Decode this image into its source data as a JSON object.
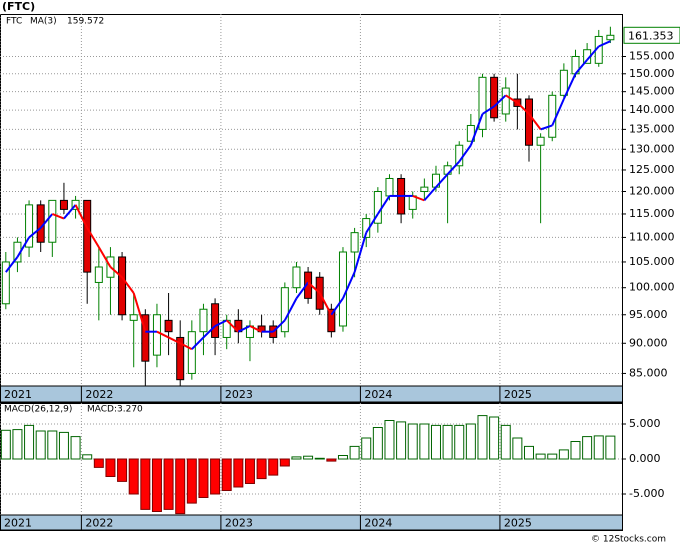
{
  "footer": "© 12Stocks.com",
  "chart_data": [
    {
      "type": "candlestick",
      "title": "(FTC)",
      "name": "FTC",
      "log_scale": true,
      "grid": true,
      "up_color": "#008000",
      "down_color": "#e00000",
      "open": [
        97,
        105,
        108,
        117,
        109,
        118,
        116,
        118,
        101,
        102,
        106,
        94,
        95,
        88,
        94,
        91,
        85,
        92,
        97,
        91,
        94,
        91,
        93,
        93,
        92,
        100,
        103,
        102,
        96,
        93,
        107,
        110,
        113,
        119,
        123,
        116,
        120,
        121,
        124,
        126,
        132,
        135,
        149,
        139,
        143,
        143,
        131,
        133,
        144,
        150,
        153,
        153,
        160
      ],
      "high": [
        107,
        110,
        118,
        118,
        118,
        122,
        119,
        118,
        108,
        108,
        107,
        99,
        96,
        97,
        99,
        94,
        94,
        97,
        98,
        95,
        96,
        94,
        95,
        94,
        101,
        105,
        104,
        103,
        97,
        108,
        112,
        115,
        121,
        124,
        124,
        120,
        123,
        126,
        127,
        132,
        139,
        150,
        150,
        149,
        150,
        144,
        134,
        145,
        153,
        157,
        159,
        163,
        164
      ],
      "low": [
        96,
        103,
        106,
        107,
        106,
        115,
        114,
        97,
        94,
        95,
        94,
        86,
        83,
        86,
        88,
        83,
        84,
        88,
        88,
        89,
        90,
        87,
        91,
        90,
        91,
        99,
        97,
        95,
        91,
        92,
        102,
        108,
        111,
        118,
        113,
        114,
        118,
        120,
        113,
        124,
        132,
        133,
        137,
        137,
        135,
        127,
        113,
        132,
        143,
        149,
        153,
        152,
        159
      ],
      "close": [
        105,
        109,
        117,
        109,
        118,
        116,
        118,
        103,
        104,
        106,
        95,
        95,
        87,
        95,
        92,
        84,
        92,
        96,
        91,
        94,
        92,
        93,
        92,
        91,
        100,
        104,
        98,
        96,
        92,
        107,
        111,
        114,
        120,
        123,
        115,
        119,
        121,
        124,
        126,
        131,
        136,
        149,
        138,
        146,
        141,
        131,
        133,
        144,
        151,
        155,
        157,
        161,
        161.353
      ],
      "ma": {
        "name": "MA(3)",
        "up_color": "#0000ff",
        "down_color": "#ff0000",
        "values": [
          103,
          106,
          110,
          112,
          115,
          114,
          117,
          112,
          108,
          104,
          102,
          99,
          92,
          92,
          91,
          90,
          89,
          91,
          93,
          94,
          92,
          93,
          92,
          92,
          94,
          98,
          101,
          99,
          95,
          98,
          103,
          111,
          115,
          119,
          119,
          119,
          118,
          121,
          124,
          127,
          131,
          139,
          141,
          144,
          142,
          139,
          135,
          136,
          143,
          150,
          154,
          158,
          159.572
        ]
      },
      "xlim": [
        -0.5,
        53
      ],
      "xticks": [
        {
          "value": -0.5,
          "label": "2021"
        },
        {
          "value": 6.5,
          "label": "2022"
        },
        {
          "value": 18.5,
          "label": "2023"
        },
        {
          "value": 30.5,
          "label": "2024"
        },
        {
          "value": 42.5,
          "label": "2025"
        }
      ],
      "ylim": [
        83,
        168
      ],
      "yticks": [
        {
          "value": 85,
          "label": "85.000"
        },
        {
          "value": 90,
          "label": "90.000"
        },
        {
          "value": 95,
          "label": "95.000"
        },
        {
          "value": 100,
          "label": "100.000"
        },
        {
          "value": 105,
          "label": "105.000"
        },
        {
          "value": 110,
          "label": "110.000"
        },
        {
          "value": 115,
          "label": "115.000"
        },
        {
          "value": 120,
          "label": "120.000"
        },
        {
          "value": 125,
          "label": "125.000"
        },
        {
          "value": 130,
          "label": "130.000"
        },
        {
          "value": 135,
          "label": "135.000"
        },
        {
          "value": 140,
          "label": "140.000"
        },
        {
          "value": 145,
          "label": "145.000"
        },
        {
          "value": 150,
          "label": "150.000"
        },
        {
          "value": 155,
          "label": "155.000"
        }
      ]
    },
    {
      "type": "histogram-bar",
      "name": "MACD(26,12,9)",
      "current_label": "MACD:3.270",
      "grid": true,
      "up_color": "#006400",
      "down_color": "#ff0000",
      "values": [
        4.1,
        4.2,
        4.8,
        4.0,
        4.0,
        3.8,
        3.2,
        0.6,
        -1.2,
        -2.5,
        -3.2,
        -5.0,
        -7.2,
        -7.5,
        -7.2,
        -7.8,
        -6.3,
        -5.5,
        -5.0,
        -4.5,
        -4.0,
        -3.5,
        -2.8,
        -2.3,
        -1.0,
        0.3,
        0.4,
        0.1,
        -0.3,
        0.5,
        1.8,
        3.0,
        4.5,
        5.5,
        5.3,
        5.0,
        5.0,
        4.8,
        4.8,
        4.8,
        5.0,
        6.2,
        6.0,
        4.8,
        3.0,
        1.8,
        0.7,
        0.7,
        1.3,
        2.5,
        3.2,
        3.3,
        3.27
      ],
      "xlim": [
        -0.5,
        53
      ],
      "xticks": [
        {
          "value": -0.5,
          "label": "2021"
        },
        {
          "value": 6.5,
          "label": "2022"
        },
        {
          "value": 18.5,
          "label": "2023"
        },
        {
          "value": 30.5,
          "label": "2024"
        },
        {
          "value": 42.5,
          "label": "2025"
        }
      ],
      "ylim": [
        -8,
        8
      ],
      "yticks": [
        {
          "value": 5,
          "label": "5.000"
        },
        {
          "value": 0,
          "label": "0.000"
        },
        {
          "value": -5,
          "label": "-5.000"
        }
      ]
    }
  ]
}
